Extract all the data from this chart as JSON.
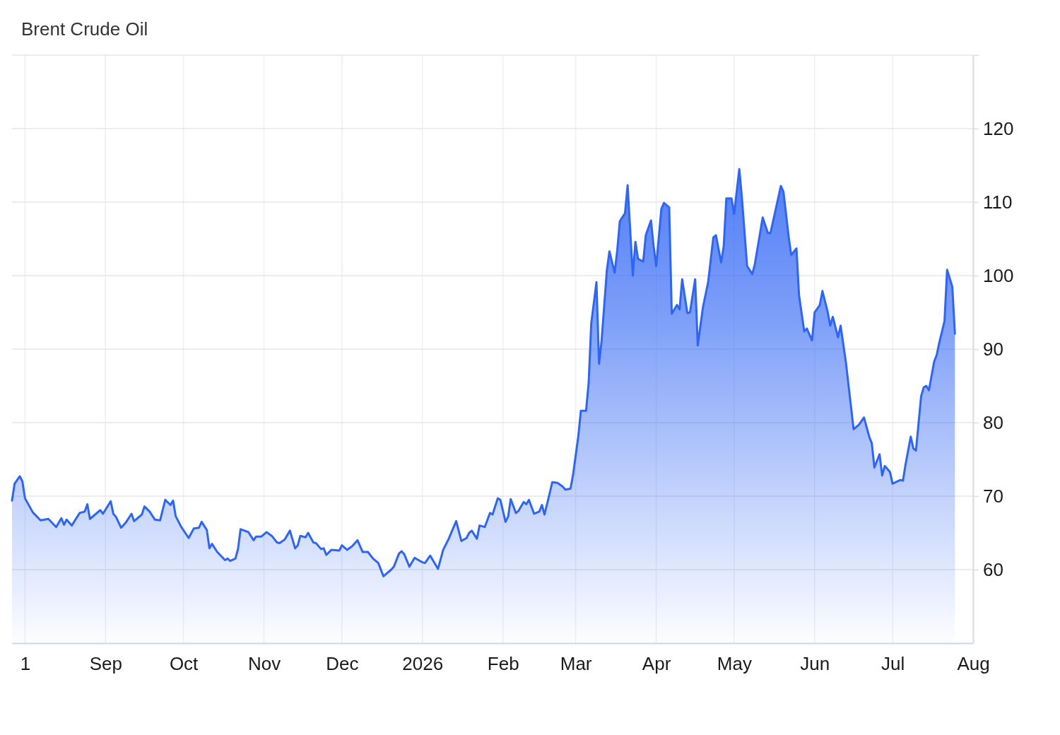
{
  "chart_data": {
    "type": "area",
    "title": "Brent Crude Oil",
    "x": [
      "2025-07-27",
      "2025-07-28",
      "2025-07-30",
      "2025-07-31",
      "2025-08-01",
      "2025-08-04",
      "2025-08-07",
      "2025-08-10",
      "2025-08-13",
      "2025-08-15",
      "2025-08-16",
      "2025-08-17",
      "2025-08-19",
      "2025-08-22",
      "2025-08-24",
      "2025-08-25",
      "2025-08-26",
      "2025-08-30",
      "2025-08-31",
      "2025-09-03",
      "2025-09-04",
      "2025-09-05",
      "2025-09-07",
      "2025-09-09",
      "2025-09-11",
      "2025-09-12",
      "2025-09-15",
      "2025-09-16",
      "2025-09-18",
      "2025-09-20",
      "2025-09-22",
      "2025-09-24",
      "2025-09-26",
      "2025-09-27",
      "2025-09-28",
      "2025-09-30",
      "2025-10-03",
      "2025-10-05",
      "2025-10-07",
      "2025-10-08",
      "2025-10-10",
      "2025-10-11",
      "2025-10-12",
      "2025-10-14",
      "2025-10-17",
      "2025-10-18",
      "2025-10-19",
      "2025-10-21",
      "2025-10-22",
      "2025-10-23",
      "2025-10-26",
      "2025-10-28",
      "2025-10-29",
      "2025-10-31",
      "2025-11-02",
      "2025-11-04",
      "2025-11-06",
      "2025-11-07",
      "2025-11-09",
      "2025-11-11",
      "2025-11-13",
      "2025-11-14",
      "2025-11-15",
      "2025-11-17",
      "2025-11-18",
      "2025-11-20",
      "2025-11-21",
      "2025-11-23",
      "2025-11-24",
      "2025-11-25",
      "2025-11-27",
      "2025-11-30",
      "2025-12-01",
      "2025-12-03",
      "2025-12-05",
      "2025-12-07",
      "2025-12-09",
      "2025-12-11",
      "2025-12-13",
      "2025-12-15",
      "2025-12-17",
      "2025-12-20",
      "2025-12-21",
      "2025-12-23",
      "2025-12-24",
      "2025-12-25",
      "2025-12-27",
      "2025-12-29",
      "2025-12-30",
      "2026-01-01",
      "2026-01-02",
      "2026-01-04",
      "2026-01-07",
      "2026-01-09",
      "2026-01-11",
      "2026-01-14",
      "2026-01-16",
      "2026-01-18",
      "2026-01-19",
      "2026-01-20",
      "2026-01-22",
      "2026-01-23",
      "2026-01-25",
      "2026-01-27",
      "2026-01-28",
      "2026-01-30",
      "2026-01-31",
      "2026-02-02",
      "2026-02-03",
      "2026-02-04",
      "2026-02-06",
      "2026-02-07",
      "2026-02-09",
      "2026-02-10",
      "2026-02-11",
      "2026-02-13",
      "2026-02-15",
      "2026-02-16",
      "2026-02-17",
      "2026-02-19",
      "2026-02-20",
      "2026-02-22",
      "2026-02-24",
      "2026-02-25",
      "2026-02-27",
      "2026-02-28",
      "2026-03-02",
      "2026-03-03",
      "2026-03-05",
      "2026-03-06",
      "2026-03-07",
      "2026-03-09",
      "2026-03-10",
      "2026-03-11",
      "2026-03-13",
      "2026-03-14",
      "2026-03-16",
      "2026-03-17",
      "2026-03-18",
      "2026-03-20",
      "2026-03-21",
      "2026-03-23",
      "2026-03-24",
      "2026-03-25",
      "2026-03-27",
      "2026-03-28",
      "2026-03-30",
      "2026-03-31",
      "2026-04-01",
      "2026-04-03",
      "2026-04-04",
      "2026-04-06",
      "2026-04-07",
      "2026-04-09",
      "2026-04-10",
      "2026-04-11",
      "2026-04-13",
      "2026-04-14",
      "2026-04-16",
      "2026-04-17",
      "2026-04-19",
      "2026-04-21",
      "2026-04-23",
      "2026-04-24",
      "2026-04-26",
      "2026-04-27",
      "2026-04-28",
      "2026-04-30",
      "2026-05-01",
      "2026-05-03",
      "2026-05-04",
      "2026-05-06",
      "2026-05-08",
      "2026-05-09",
      "2026-05-12",
      "2026-05-14",
      "2026-05-15",
      "2026-05-19",
      "2026-05-20",
      "2026-05-22",
      "2026-05-23",
      "2026-05-25",
      "2026-05-26",
      "2026-05-28",
      "2026-05-29",
      "2026-05-31",
      "2026-06-01",
      "2026-06-03",
      "2026-06-04",
      "2026-06-06",
      "2026-06-07",
      "2026-06-08",
      "2026-06-10",
      "2026-06-11",
      "2026-06-13",
      "2026-06-16",
      "2026-06-18",
      "2026-06-20",
      "2026-06-22",
      "2026-06-23",
      "2026-06-24",
      "2026-06-26",
      "2026-06-27",
      "2026-06-28",
      "2026-06-30",
      "2026-07-01",
      "2026-07-04",
      "2026-07-05",
      "2026-07-06",
      "2026-07-08",
      "2026-07-09",
      "2026-07-10",
      "2026-07-12",
      "2026-07-13",
      "2026-07-14",
      "2026-07-15",
      "2026-07-17",
      "2026-07-18",
      "2026-07-19",
      "2026-07-21",
      "2026-07-22",
      "2026-07-24",
      "2026-07-25"
    ],
    "series": [
      {
        "color": "#2f65f5",
        "values": [
          69.4,
          71.7,
          72.7,
          72.0,
          69.7,
          67.8,
          66.7,
          66.9,
          65.8,
          67.0,
          66.1,
          66.8,
          66.0,
          67.7,
          67.9,
          68.9,
          66.9,
          68.1,
          67.6,
          69.3,
          67.6,
          67.2,
          65.7,
          66.5,
          67.6,
          66.6,
          67.5,
          68.6,
          67.9,
          66.8,
          66.7,
          69.5,
          68.8,
          69.4,
          67.3,
          65.9,
          64.3,
          65.6,
          65.7,
          66.5,
          65.4,
          62.9,
          63.5,
          62.4,
          61.3,
          61.5,
          61.2,
          61.5,
          62.8,
          65.5,
          65.1,
          64.0,
          64.5,
          64.5,
          65.1,
          64.6,
          63.7,
          63.6,
          64.1,
          65.3,
          62.9,
          63.3,
          64.6,
          64.4,
          65.0,
          63.7,
          63.6,
          62.8,
          62.9,
          62.0,
          62.7,
          62.6,
          63.3,
          62.7,
          63.2,
          64.0,
          62.4,
          62.4,
          61.5,
          60.9,
          59.1,
          60.0,
          60.4,
          62.2,
          62.5,
          62.1,
          60.4,
          61.6,
          61.4,
          61.0,
          60.9,
          61.9,
          60.1,
          62.7,
          64.1,
          66.6,
          63.9,
          64.3,
          65.0,
          65.3,
          64.2,
          66.0,
          65.8,
          67.7,
          67.5,
          69.7,
          69.5,
          66.5,
          67.2,
          69.6,
          67.7,
          68.0,
          69.2,
          68.9,
          69.5,
          67.6,
          67.9,
          68.8,
          67.5,
          70.4,
          71.9,
          71.8,
          71.3,
          70.9,
          71.0,
          72.9,
          78.1,
          81.6,
          81.6,
          85.4,
          93.5,
          99.1,
          88.0,
          91.2,
          100.7,
          103.3,
          100.4,
          103.4,
          107.4,
          108.5,
          112.3,
          100.0,
          104.6,
          102.3,
          101.9,
          105.5,
          107.5,
          104.0,
          101.3,
          109.1,
          109.9,
          109.3,
          94.8,
          96.0,
          95.4,
          99.5,
          94.9,
          95.0,
          99.5,
          90.5,
          95.7,
          99.1,
          105.2,
          105.5,
          101.8,
          104.0,
          110.5,
          110.5,
          108.4,
          114.5,
          110.6,
          101.3,
          100.2,
          101.6,
          107.9,
          105.8,
          105.8,
          112.2,
          111.4,
          105.3,
          102.8,
          103.7,
          97.3,
          92.4,
          92.8,
          91.2,
          95.0,
          96.0,
          97.9,
          95.1,
          93.2,
          94.4,
          91.6,
          93.2,
          88.3,
          79.1,
          79.7,
          80.7,
          78.1,
          77.2,
          73.9,
          75.7,
          72.8,
          74.1,
          73.3,
          71.7,
          72.2,
          72.1,
          74.3,
          78.1,
          76.5,
          76.2,
          83.6,
          84.8,
          85.0,
          84.4,
          88.3,
          89.2,
          90.9,
          93.8,
          100.8,
          98.5,
          92.1
        ]
      }
    ],
    "xlim": [
      "2025-07-27",
      "2026-08-01"
    ],
    "xticks": [
      {
        "value": "2025-08-01",
        "label": "1"
      },
      {
        "value": "2025-09-01",
        "label": "Sep"
      },
      {
        "value": "2025-10-01",
        "label": "Oct"
      },
      {
        "value": "2025-11-01",
        "label": "Nov"
      },
      {
        "value": "2025-12-01",
        "label": "Dec"
      },
      {
        "value": "2026-01-01",
        "label": "2026"
      },
      {
        "value": "2026-02-01",
        "label": "Feb"
      },
      {
        "value": "2026-03-01",
        "label": "Mar"
      },
      {
        "value": "2026-04-01",
        "label": "Apr"
      },
      {
        "value": "2026-05-01",
        "label": "May"
      },
      {
        "value": "2026-06-01",
        "label": "Jun"
      },
      {
        "value": "2026-07-01",
        "label": "Jul"
      },
      {
        "value": "2026-08-01",
        "label": "Aug"
      }
    ],
    "ylim": [
      50,
      130
    ],
    "yticks": [
      60,
      70,
      80,
      90,
      100,
      110,
      120,
      {
        "value": 130,
        "label": null
      }
    ],
    "grid": true
  }
}
